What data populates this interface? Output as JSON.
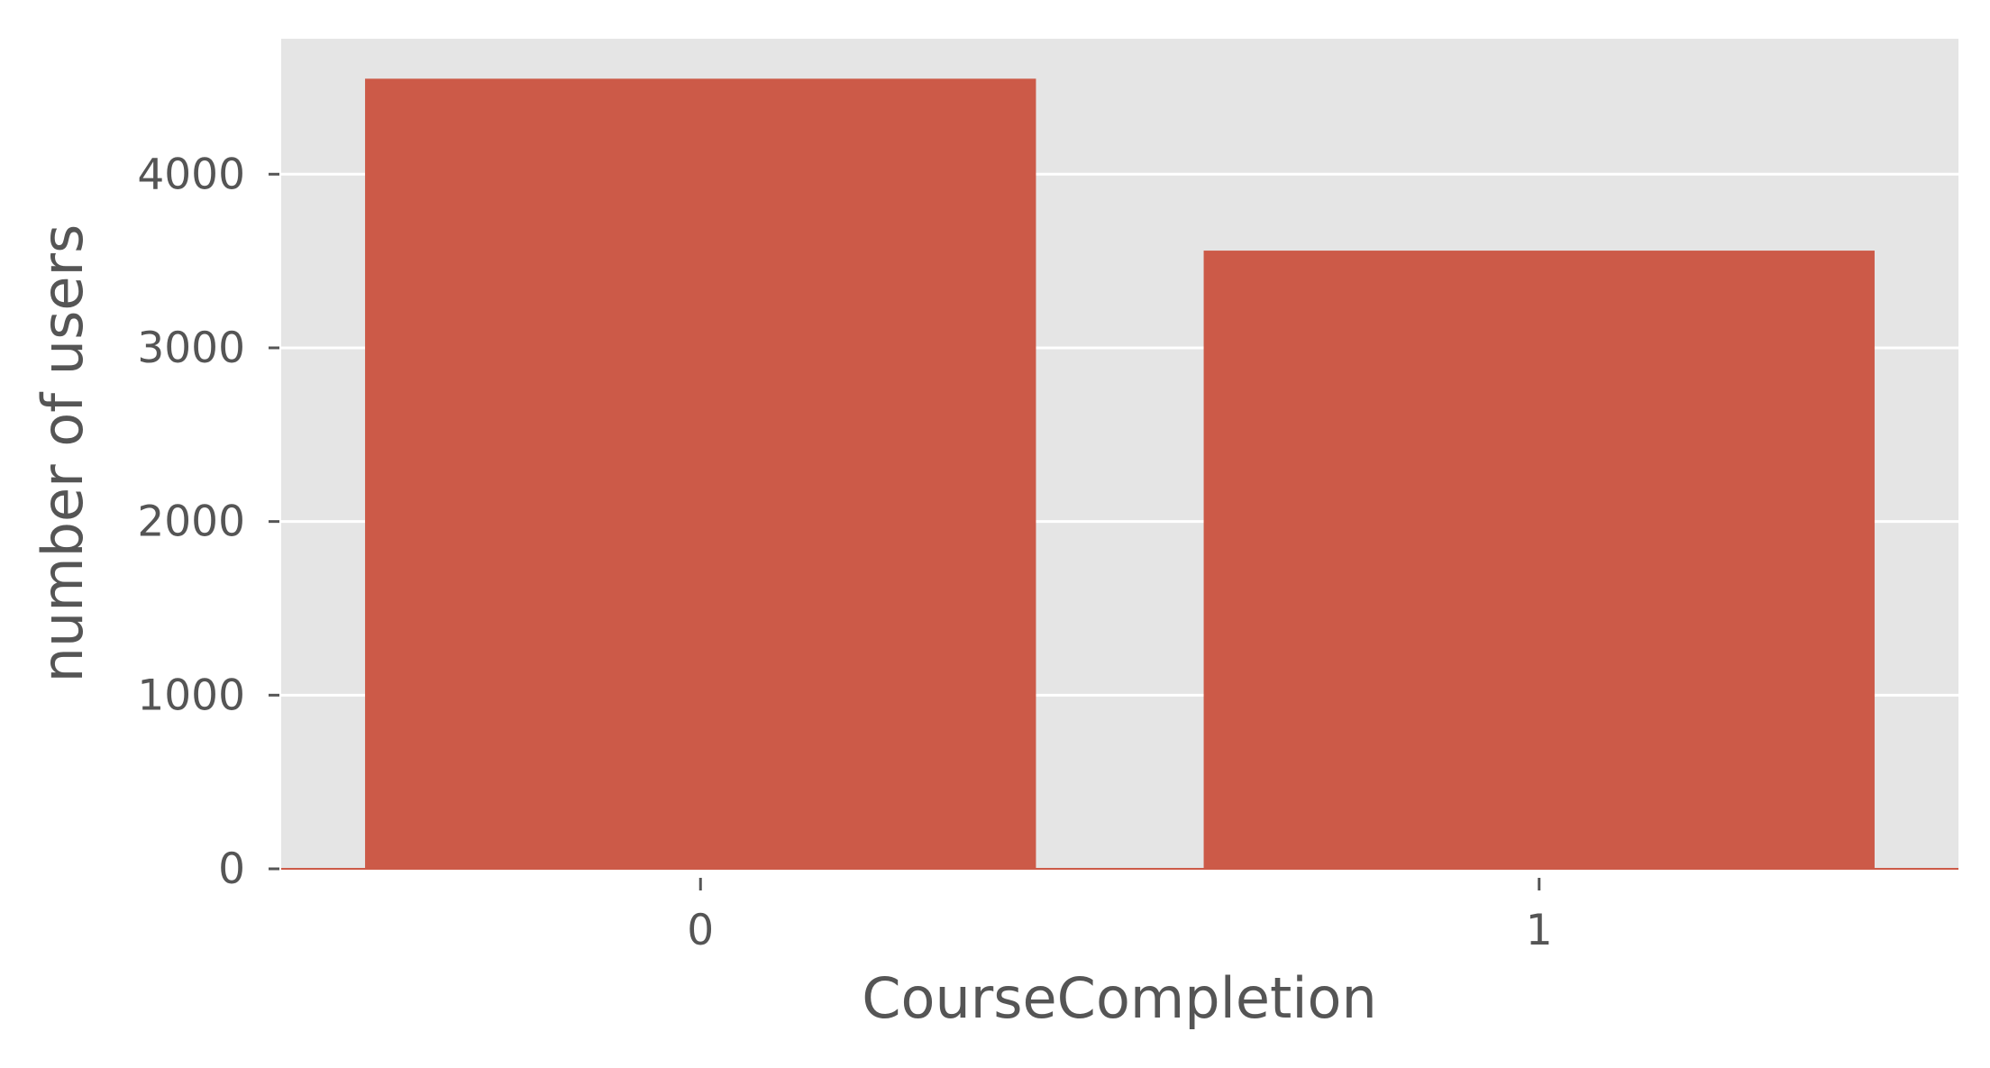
{
  "chart_data": {
    "type": "bar",
    "categories": [
      "0",
      "1"
    ],
    "values": [
      4550,
      3560
    ],
    "xlabel": "CourseCompletion",
    "ylabel": "number of users",
    "ylim": [
      0,
      4780
    ],
    "yticks": [
      0,
      1000,
      2000,
      3000,
      4000
    ],
    "yticklabels": [
      "0",
      "1000",
      "2000",
      "3000",
      "4000"
    ],
    "grid": true,
    "bar_color": "#cc5a48",
    "background_color": "#e5e5e5",
    "grid_color": "#ffffff",
    "text_color": "#555555"
  }
}
